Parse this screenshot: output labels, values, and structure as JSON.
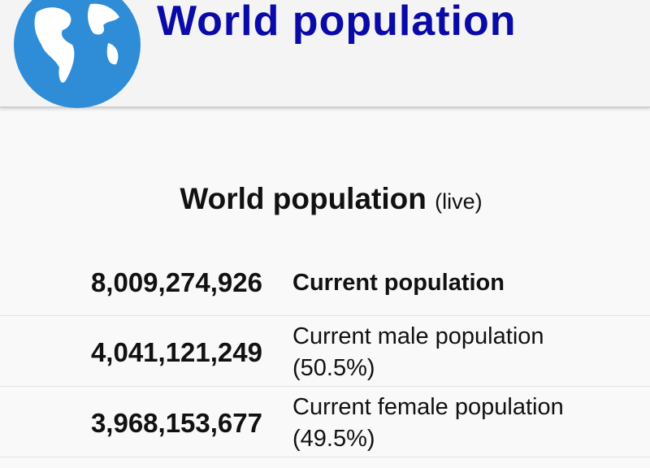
{
  "header": {
    "title": "World population"
  },
  "section": {
    "title": "World population",
    "subtitle": "(live)"
  },
  "rows": [
    {
      "number": "8,009,274,926",
      "label": "Current population"
    },
    {
      "number": "4,041,121,249",
      "label": "Current male population",
      "share": "(50.5%)"
    },
    {
      "number": "3,968,153,677",
      "label": "Current female population",
      "share": "(49.5%)"
    }
  ]
}
